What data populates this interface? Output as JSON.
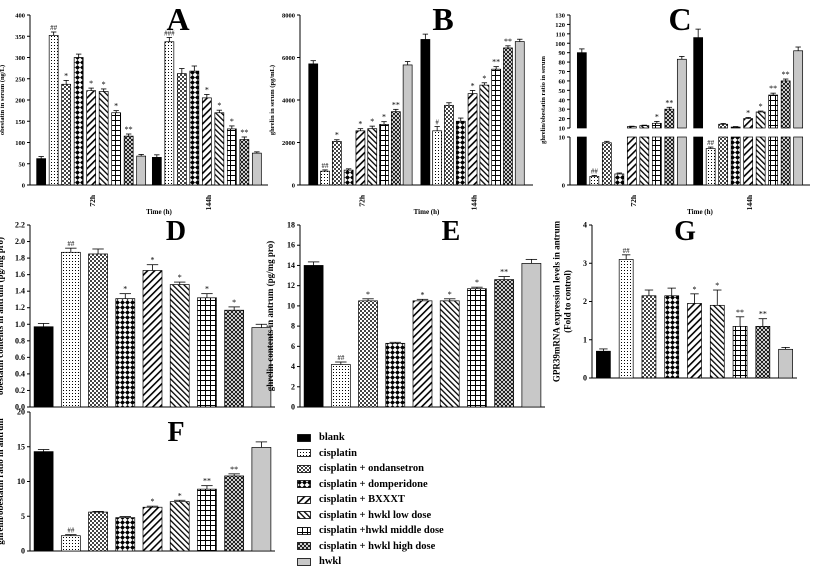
{
  "legend": {
    "items": [
      {
        "label": "blank",
        "pattern": "p-blank"
      },
      {
        "label": "cisplatin",
        "pattern": "p-cis"
      },
      {
        "label": "cisplatin + ondansetron",
        "pattern": "p-ond"
      },
      {
        "label": "cisplatin + domperidone",
        "pattern": "p-dom"
      },
      {
        "label": "cisplatin + BXXXT",
        "pattern": "p-bxx"
      },
      {
        "label": "cisplatin + hwkl low dose",
        "pattern": "p-low"
      },
      {
        "label": "cisplatin +hwkl middle dose",
        "pattern": "p-mid"
      },
      {
        "label": "cisplatin + hwkl high dose",
        "pattern": "p-high"
      },
      {
        "label": "hwkl",
        "pattern": "p-hwkl"
      }
    ]
  },
  "colors": {
    "blank": "#000000",
    "hwkl": "#c8c8c8",
    "ink": "#000000"
  },
  "chart_data": [
    {
      "id": "A",
      "type": "bar",
      "panel_label": "A",
      "ylabel": "obestatin in serum (ng/L)",
      "xlabel": "Time (h)",
      "categories": [
        "72h",
        "144h"
      ],
      "yticks": [
        0,
        50,
        100,
        150,
        200,
        250,
        300,
        350,
        400
      ],
      "ylim": [
        0,
        400
      ],
      "groups": [
        {
          "values": [
            62,
            352,
            237,
            300,
            222,
            220,
            170,
            115,
            68
          ],
          "errors": [
            5,
            8,
            9,
            8,
            6,
            6,
            5,
            5,
            4
          ],
          "marks": [
            "",
            "##",
            "*",
            "",
            "*",
            "*",
            "*",
            "**",
            ""
          ]
        },
        {
          "values": [
            65,
            337,
            262,
            268,
            205,
            170,
            132,
            107,
            75
          ],
          "errors": [
            6,
            10,
            12,
            12,
            8,
            6,
            7,
            6,
            3
          ],
          "marks": [
            "",
            "###",
            "",
            "",
            "*",
            "*",
            "*",
            "**",
            ""
          ]
        }
      ]
    },
    {
      "id": "B",
      "type": "bar",
      "panel_label": "B",
      "ylabel": "ghrelin in serum (pg/mL)",
      "xlabel": "Time (h)",
      "categories": [
        "72h",
        "144h"
      ],
      "yticks": [
        0,
        2000,
        4000,
        6000,
        8000
      ],
      "ylim": [
        0,
        8000
      ],
      "groups": [
        {
          "values": [
            5700,
            650,
            2050,
            700,
            2550,
            2650,
            2850,
            3450,
            5650
          ],
          "errors": [
            150,
            60,
            80,
            60,
            100,
            120,
            130,
            110,
            160
          ],
          "marks": [
            "",
            "##",
            "*",
            "",
            "*",
            "*",
            "*",
            "**",
            ""
          ]
        },
        {
          "values": [
            6850,
            2550,
            3750,
            3000,
            4300,
            4700,
            5450,
            6450,
            6750
          ],
          "errors": [
            250,
            200,
            120,
            150,
            150,
            110,
            120,
            100,
            110
          ],
          "marks": [
            "",
            "#",
            "",
            "",
            "*",
            "*",
            "**",
            "**",
            ""
          ]
        }
      ]
    },
    {
      "id": "C",
      "type": "bar",
      "panel_label": "C",
      "ylabel": "ghrelin/obestatin ratio in serum",
      "xlabel": "Time (h)",
      "categories": [
        "72h",
        "144h"
      ],
      "yticks_upper": [
        10,
        20,
        30,
        40,
        50,
        60,
        70,
        80,
        90,
        100,
        110,
        120,
        130
      ],
      "yticks_lower": [
        0,
        10
      ],
      "groups": [
        {
          "values": [
            90,
            1.8,
            8.8,
            2.3,
            11.5,
            12.5,
            15,
            30,
            83
          ],
          "errors": [
            4,
            0.2,
            0.3,
            0.2,
            0.4,
            0.5,
            2,
            2,
            3
          ],
          "marks": [
            "",
            "##",
            "",
            "",
            "",
            "",
            "*",
            "**",
            ""
          ]
        },
        {
          "values": [
            106,
            7.6,
            14,
            11,
            20,
            27,
            45,
            60,
            92
          ],
          "errors": [
            9,
            0.3,
            0.8,
            0.5,
            1.2,
            1,
            2,
            2,
            4
          ],
          "marks": [
            "",
            "##",
            "",
            "",
            "*",
            "*",
            "**",
            "**",
            ""
          ]
        }
      ]
    },
    {
      "id": "D",
      "type": "bar",
      "panel_label": "D",
      "ylabel": "obestatin contents in antrum (pg/mg pro)",
      "yticks": [
        "0.0",
        "0.2",
        "0.4",
        "0.6",
        "0.8",
        "1.0",
        "1.2",
        "1.4",
        "1.6",
        "1.8",
        "2.0",
        "2.2"
      ],
      "ylim": [
        0,
        2.2
      ],
      "values": [
        0.97,
        1.87,
        1.85,
        1.31,
        1.65,
        1.48,
        1.32,
        1.17,
        0.96
      ],
      "errors": [
        0.04,
        0.05,
        0.06,
        0.06,
        0.07,
        0.03,
        0.05,
        0.04,
        0.04
      ],
      "marks": [
        "",
        "##",
        "",
        "*",
        "*",
        "*",
        "*",
        "*",
        ""
      ]
    },
    {
      "id": "E",
      "type": "bar",
      "panel_label": "E",
      "ylabel": "ghrelin contents in antrum (pg/mg pro)",
      "yticks": [
        0,
        2,
        4,
        6,
        8,
        10,
        12,
        14,
        16,
        18
      ],
      "ylim": [
        0,
        18
      ],
      "values": [
        14,
        4.2,
        10.5,
        6.3,
        10.5,
        10.5,
        11.7,
        12.6,
        14.2
      ],
      "errors": [
        0.35,
        0.25,
        0.2,
        0.1,
        0.15,
        0.2,
        0.15,
        0.3,
        0.4
      ],
      "marks": [
        "",
        "##",
        "*",
        "",
        "*",
        "*",
        "*",
        "**",
        ""
      ]
    },
    {
      "id": "G",
      "type": "bar",
      "panel_label": "G",
      "ylabel": "GPR39mRNA expression levels in antrum\n(Fold to control)",
      "yticks": [
        0,
        1,
        2,
        3,
        4
      ],
      "ylim": [
        0,
        4
      ],
      "values": [
        0.7,
        3.1,
        2.15,
        2.15,
        1.95,
        1.9,
        1.35,
        1.35,
        0.75
      ],
      "errors": [
        0.06,
        0.12,
        0.15,
        0.2,
        0.25,
        0.4,
        0.25,
        0.2,
        0.05
      ],
      "marks": [
        "",
        "##",
        "",
        "",
        "*",
        "*",
        "**",
        "**",
        ""
      ]
    },
    {
      "id": "F",
      "type": "bar",
      "panel_label": "F",
      "ylabel": "ghrelin/obestatin ratio in antrum",
      "yticks": [
        0,
        5,
        10,
        15,
        20
      ],
      "ylim": [
        0,
        20
      ],
      "values": [
        14.3,
        2.2,
        5.6,
        4.8,
        6.3,
        7.1,
        8.9,
        10.8,
        14.9
      ],
      "errors": [
        0.3,
        0.15,
        0.1,
        0.15,
        0.15,
        0.2,
        0.5,
        0.3,
        0.8
      ],
      "marks": [
        "",
        "##",
        "",
        "",
        "*",
        "*",
        "**",
        "**",
        ""
      ]
    }
  ]
}
